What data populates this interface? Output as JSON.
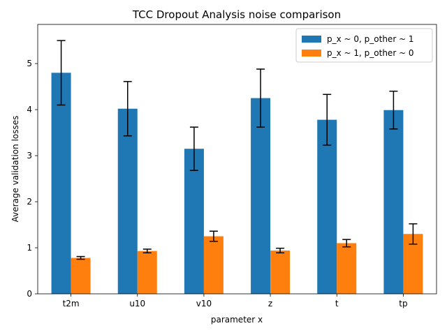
{
  "chart_data": {
    "type": "bar",
    "title": "TCC Dropout Analysis noise comparison",
    "xlabel": "parameter x",
    "ylabel": "Average validation losses",
    "categories": [
      "t2m",
      "u10",
      "v10",
      "z",
      "t",
      "tp"
    ],
    "ylim": [
      0,
      5.85
    ],
    "yticks": [
      0,
      1,
      2,
      3,
      4,
      5
    ],
    "grid": false,
    "legend_position": "top-right",
    "series": [
      {
        "name": "p_x ~ 0, p_other ~ 1",
        "color": "#1f77b4",
        "values": [
          4.8,
          4.02,
          3.15,
          4.25,
          3.78,
          3.99
        ],
        "errors": [
          0.7,
          0.59,
          0.47,
          0.63,
          0.55,
          0.41
        ]
      },
      {
        "name": "p_x ~ 1, p_other ~ 0",
        "color": "#ff7f0e",
        "values": [
          0.78,
          0.93,
          1.25,
          0.94,
          1.1,
          1.3
        ],
        "errors": [
          0.03,
          0.04,
          0.11,
          0.05,
          0.08,
          0.22
        ]
      }
    ]
  }
}
